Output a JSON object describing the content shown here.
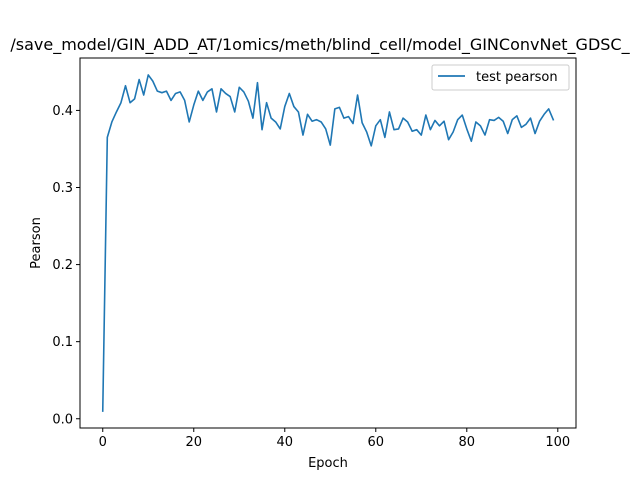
{
  "chart_data": {
    "type": "line",
    "title": "/save_model/GIN_ADD_AT/1omics/meth/blind_cell/model_GINConvNet_GDSC_",
    "xlabel": "Epoch",
    "ylabel": "Pearson",
    "xlim": [
      -5,
      104
    ],
    "ylim": [
      -0.012,
      0.468
    ],
    "xticks": [
      0,
      20,
      40,
      60,
      80,
      100
    ],
    "yticks": [
      0.0,
      0.1,
      0.2,
      0.3,
      0.4
    ],
    "xtick_labels": [
      "0",
      "20",
      "40",
      "60",
      "80",
      "100"
    ],
    "ytick_labels": [
      "0.0",
      "0.1",
      "0.2",
      "0.3",
      "0.4"
    ],
    "grid": false,
    "legend": {
      "loc": "upper right",
      "entries": [
        "test pearson"
      ]
    },
    "series": [
      {
        "name": "test pearson",
        "color": "#1f77b4",
        "x": [
          0,
          1,
          2,
          3,
          4,
          5,
          6,
          7,
          8,
          9,
          10,
          11,
          12,
          13,
          14,
          15,
          16,
          17,
          18,
          19,
          20,
          21,
          22,
          23,
          24,
          25,
          26,
          27,
          28,
          29,
          30,
          31,
          32,
          33,
          34,
          35,
          36,
          37,
          38,
          39,
          40,
          41,
          42,
          43,
          44,
          45,
          46,
          47,
          48,
          49,
          50,
          51,
          52,
          53,
          54,
          55,
          56,
          57,
          58,
          59,
          60,
          61,
          62,
          63,
          64,
          65,
          66,
          67,
          68,
          69,
          70,
          71,
          72,
          73,
          74,
          75,
          76,
          77,
          78,
          79,
          80,
          81,
          82,
          83,
          84,
          85,
          86,
          87,
          88,
          89,
          90,
          91,
          92,
          93,
          94,
          95,
          96,
          97,
          98,
          99
        ],
        "values": [
          0.01,
          0.365,
          0.385,
          0.398,
          0.41,
          0.432,
          0.41,
          0.415,
          0.44,
          0.42,
          0.446,
          0.438,
          0.425,
          0.423,
          0.425,
          0.413,
          0.422,
          0.424,
          0.413,
          0.385,
          0.407,
          0.425,
          0.413,
          0.424,
          0.428,
          0.398,
          0.428,
          0.422,
          0.418,
          0.398,
          0.43,
          0.424,
          0.412,
          0.39,
          0.436,
          0.375,
          0.41,
          0.39,
          0.385,
          0.376,
          0.405,
          0.422,
          0.405,
          0.398,
          0.368,
          0.395,
          0.386,
          0.388,
          0.385,
          0.376,
          0.355,
          0.402,
          0.404,
          0.39,
          0.392,
          0.383,
          0.42,
          0.384,
          0.372,
          0.354,
          0.38,
          0.388,
          0.365,
          0.398,
          0.375,
          0.376,
          0.39,
          0.385,
          0.373,
          0.375,
          0.368,
          0.394,
          0.375,
          0.387,
          0.38,
          0.386,
          0.362,
          0.372,
          0.388,
          0.394,
          0.376,
          0.36,
          0.385,
          0.38,
          0.368,
          0.388,
          0.387,
          0.391,
          0.386,
          0.37,
          0.388,
          0.393,
          0.378,
          0.382,
          0.39,
          0.37,
          0.386,
          0.395,
          0.402,
          0.388
        ]
      }
    ]
  }
}
